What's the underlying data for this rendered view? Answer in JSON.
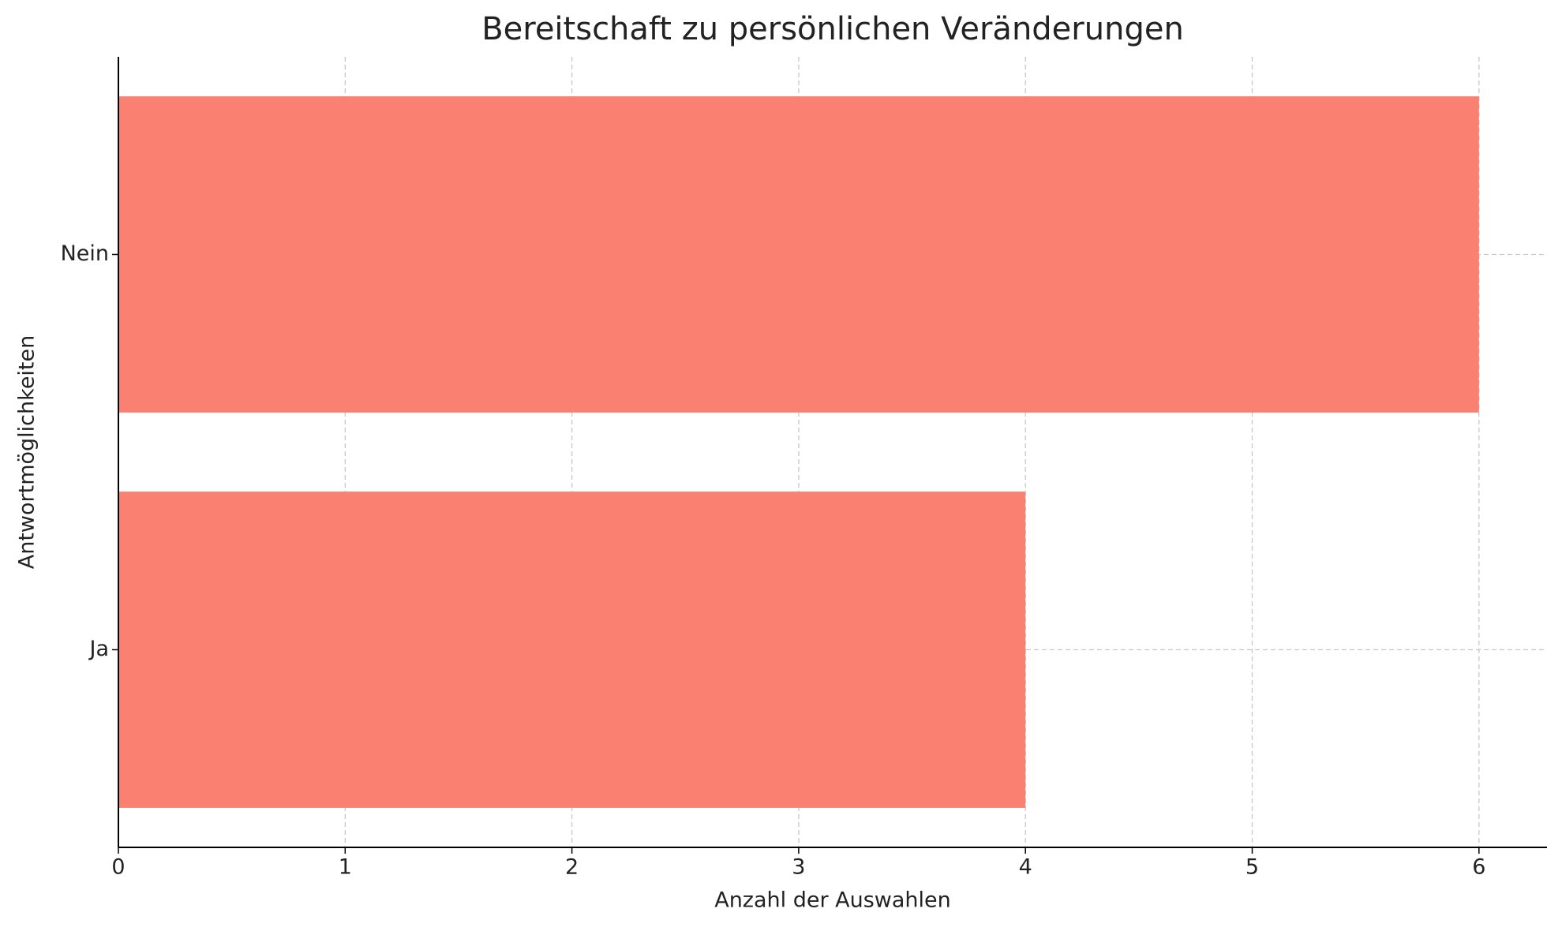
{
  "chart_data": {
    "type": "barh",
    "title": "Bereitschaft zu persönlichen Veränderungen",
    "x_label": "Anzahl der Auswahlen",
    "y_label": "Antwortmöglichkeiten",
    "categories": [
      "Ja",
      "Nein"
    ],
    "values": [
      4,
      6
    ],
    "color": "#fa8072",
    "xlim": [
      0,
      6.3
    ],
    "xticks": [
      0,
      1,
      2,
      3,
      4,
      5,
      6
    ],
    "grid": true
  }
}
